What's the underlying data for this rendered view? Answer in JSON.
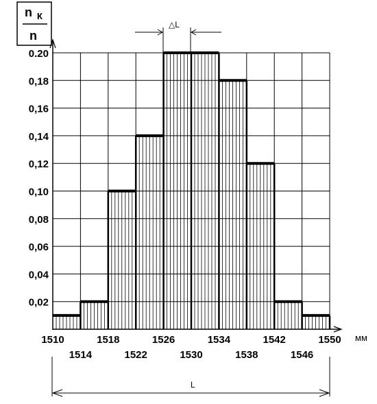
{
  "chart_data": {
    "type": "bar",
    "y_label_numerator": "n",
    "y_label_numerator_subscript": "К",
    "y_label_denominator": "n",
    "x_unit": "мм",
    "bin_width_label": "△L",
    "range_label": "L",
    "x_ticks": [
      1510,
      1514,
      1518,
      1522,
      1526,
      1530,
      1534,
      1538,
      1542,
      1546,
      1550
    ],
    "x_tick_labels": [
      "1510",
      "1514",
      "1518",
      "1522",
      "1526",
      "1530",
      "1534",
      "1538",
      "1542",
      "1546",
      "1550"
    ],
    "y_tick_labels": [
      "0,02",
      "0,04",
      "0,06",
      "0,08",
      "0,10",
      "0,12",
      "0,14",
      "0,16",
      "0,18",
      "0.20"
    ],
    "y_ticks": [
      0.02,
      0.04,
      0.06,
      0.08,
      0.1,
      0.12,
      0.14,
      0.16,
      0.18,
      0.2
    ],
    "xlim": [
      1510,
      1550
    ],
    "ylim": [
      0,
      0.2
    ],
    "grid": true,
    "bins": [
      {
        "from": 1510,
        "to": 1514,
        "value": 0.01
      },
      {
        "from": 1514,
        "to": 1518,
        "value": 0.02
      },
      {
        "from": 1518,
        "to": 1522,
        "value": 0.1
      },
      {
        "from": 1522,
        "to": 1526,
        "value": 0.14
      },
      {
        "from": 1526,
        "to": 1530,
        "value": 0.2
      },
      {
        "from": 1530,
        "to": 1534,
        "value": 0.2
      },
      {
        "from": 1534,
        "to": 1538,
        "value": 0.18
      },
      {
        "from": 1538,
        "to": 1542,
        "value": 0.12
      },
      {
        "from": 1542,
        "to": 1546,
        "value": 0.02
      },
      {
        "from": 1546,
        "to": 1550,
        "value": 0.01
      }
    ]
  }
}
